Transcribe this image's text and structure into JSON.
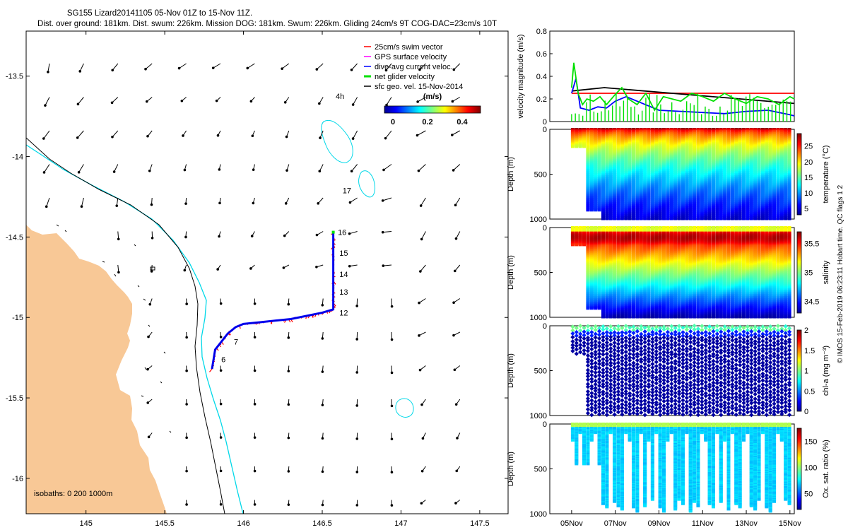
{
  "title_line1": "SG155 Lizard20141105 05-Nov 01Z to 15-Nov 11Z.",
  "title_line2": "Dist. over ground: 181km. Dist. swum: 226km. Mission DOG: 181km. Swum: 226km. Gliding 24cm/s 9T COG-DAC=23cm/s 10T",
  "credit": "© IMOS 15-Feb-2019 06:23:11 Hobart time. QC flags 1  2",
  "colors": {
    "land": "#f8c896",
    "shelf_isobath": "#00d8e8",
    "deep_isobath": "#000000",
    "swim": "#ff0000",
    "gps": "#ff00ff",
    "dac": "#0000ff",
    "net": "#00e000",
    "geo": "#000000"
  },
  "chart_data": [
    {
      "type": "map",
      "name": "track_map",
      "xlim": [
        144.62,
        147.68
      ],
      "ylim": [
        -16.22,
        -13.22
      ],
      "xticks": [
        145,
        145.5,
        146,
        146.5,
        147,
        147.5
      ],
      "xtick_labels": [
        "145",
        "145.5",
        "146",
        "146.5",
        "147",
        "147.5"
      ],
      "yticks": [
        -13.5,
        -14,
        -14.5,
        -15,
        -15.5,
        -16
      ],
      "ytick_labels": [
        "-13.5",
        "-14",
        "-14.5",
        "-15",
        "-15.5",
        "-16"
      ],
      "legend": [
        {
          "label": "25cm/s swim vector",
          "color": "#ff0000"
        },
        {
          "label": "GPS surface velocity",
          "color": "#ff00ff"
        },
        {
          "label": "dive-avg current veloc.",
          "color": "#0000ff"
        },
        {
          "label": "net glider velocity",
          "color": "#00e000"
        },
        {
          "label": "sfc geo. vel. 15-Nov-2014",
          "color": "#000000"
        }
      ],
      "legend_extra": "4h",
      "colorbar": {
        "label": "(m/s)",
        "range": [
          0,
          0.5
        ],
        "ticks": [
          "0",
          "0.2",
          "0.4"
        ]
      },
      "isobath_label": "isobaths: 0   200  1000m",
      "track": [
        [
          145.8,
          -15.32
        ],
        [
          145.82,
          -15.2
        ],
        [
          145.86,
          -15.15
        ],
        [
          145.9,
          -15.1
        ],
        [
          145.95,
          -15.06
        ],
        [
          146.0,
          -15.04
        ],
        [
          146.1,
          -15.03
        ],
        [
          146.2,
          -15.02
        ],
        [
          146.3,
          -15.01
        ],
        [
          146.4,
          -14.99
        ],
        [
          146.5,
          -14.97
        ],
        [
          146.57,
          -14.95
        ],
        [
          146.57,
          -14.8
        ],
        [
          146.57,
          -14.6
        ],
        [
          146.57,
          -14.47
        ]
      ],
      "day_labels": [
        {
          "text": "6",
          "lon": 145.85,
          "lat": -15.26
        },
        {
          "text": "7",
          "lon": 145.93,
          "lat": -15.15
        },
        {
          "text": "12",
          "lon": 146.6,
          "lat": -14.97
        },
        {
          "text": "13",
          "lon": 146.6,
          "lat": -14.84
        },
        {
          "text": "14",
          "lon": 146.6,
          "lat": -14.73
        },
        {
          "text": "15",
          "lon": 146.6,
          "lat": -14.6
        },
        {
          "text": "16",
          "lon": 146.59,
          "lat": -14.47
        },
        {
          "text": "17",
          "lon": 146.62,
          "lat": -14.21
        }
      ]
    },
    {
      "type": "line",
      "name": "velocity_magnitude",
      "ylabel": "velocity magnitude (m/s)",
      "ylim": [
        0,
        0.8
      ],
      "yticks": [
        "0",
        "0.2",
        "0.4",
        "0.6",
        "0.8"
      ],
      "xlim_days": [
        4,
        15.2
      ],
      "series": [
        {
          "name": "25cm/s swim",
          "color": "#ff0000",
          "x": [
            5,
            15.2
          ],
          "y": [
            0.25,
            0.25
          ]
        },
        {
          "name": "sfc geo. vel.",
          "color": "#000000",
          "x": [
            5,
            6.5,
            15.2
          ],
          "y": [
            0.27,
            0.3,
            0.16
          ]
        },
        {
          "name": "dive-avg current",
          "color": "#0000ff",
          "x": [
            5,
            5.2,
            5.4,
            5.8,
            6.2,
            6.6,
            7,
            7.5,
            8,
            8.5,
            9,
            10,
            11,
            12,
            13,
            14,
            15,
            15.2
          ],
          "y": [
            0.25,
            0.38,
            0.12,
            0.1,
            0.13,
            0.12,
            0.18,
            0.22,
            0.18,
            0.14,
            0.1,
            0.09,
            0.08,
            0.07,
            0.09,
            0.1,
            0.06,
            0.05
          ]
        },
        {
          "name": "net glider velocity",
          "color": "#00e000",
          "x": [
            5,
            5.1,
            5.3,
            5.5,
            5.7,
            6,
            6.3,
            6.6,
            7,
            7.3,
            7.6,
            8,
            8.4,
            8.8,
            9.2,
            9.6,
            10,
            10.5,
            11,
            11.5,
            12,
            12.5,
            13,
            13.5,
            14,
            14.5,
            15,
            15.2
          ],
          "y": [
            0.3,
            0.52,
            0.25,
            0.15,
            0.2,
            0.18,
            0.22,
            0.15,
            0.24,
            0.3,
            0.2,
            0.15,
            0.25,
            0.1,
            0.22,
            0.2,
            0.18,
            0.25,
            0.22,
            0.18,
            0.25,
            0.2,
            0.16,
            0.22,
            0.2,
            0.15,
            0.22,
            0.2
          ]
        }
      ]
    },
    {
      "type": "heatmap",
      "name": "temperature_section",
      "ylabel": "Depth (m)",
      "yticks": [
        "0",
        "500",
        "1000"
      ],
      "colorbar_label": "temperature (°C)",
      "colorbar_ticks": [
        "5",
        "10",
        "15",
        "20",
        "25"
      ],
      "crange": [
        3,
        29
      ]
    },
    {
      "type": "heatmap",
      "name": "salinity_section",
      "ylabel": "Depth (m)",
      "yticks": [
        "0",
        "500",
        "1000"
      ],
      "colorbar_label": "salinity",
      "colorbar_ticks": [
        "34.5",
        "35",
        "35.5"
      ],
      "crange": [
        34.3,
        35.7
      ]
    },
    {
      "type": "heatmap",
      "name": "chla_section",
      "ylabel": "Depth (m)",
      "yticks": [
        "0",
        "500",
        "1000"
      ],
      "colorbar_label": "chl-a (mg m⁻³)",
      "colorbar_ticks": [
        "0",
        "0.5",
        "1",
        "1.5",
        "2"
      ],
      "crange": [
        0,
        2
      ]
    },
    {
      "type": "heatmap",
      "name": "oxygen_section",
      "ylabel": "Depth (m)",
      "yticks": [
        "0",
        "500",
        "1000"
      ],
      "colorbar_label": "Ox. sat. ratio (%)",
      "colorbar_ticks": [
        "50",
        "100",
        "150"
      ],
      "crange": [
        20,
        175
      ]
    },
    {
      "type": "axis",
      "name": "time_axis",
      "ticks": [
        {
          "day": 5,
          "label": "05Nov"
        },
        {
          "day": 7,
          "label": "07Nov"
        },
        {
          "day": 9,
          "label": "09Nov"
        },
        {
          "day": 11,
          "label": "11Nov"
        },
        {
          "day": 13,
          "label": "13Nov"
        },
        {
          "day": 15,
          "label": "15Nov"
        }
      ]
    }
  ]
}
